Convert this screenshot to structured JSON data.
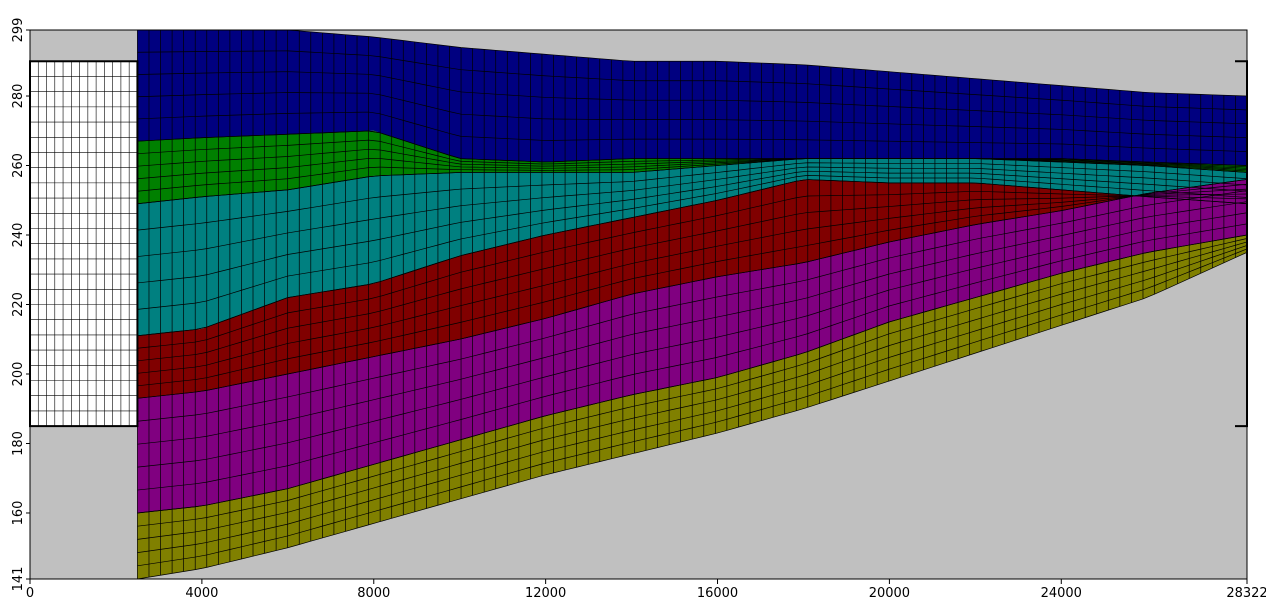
{
  "chart_data": {
    "type": "area",
    "title": "",
    "xlabel": "",
    "ylabel": "",
    "xlim": [
      0,
      28322
    ],
    "ylim": [
      141,
      299
    ],
    "x_ticks": [
      "0",
      "4000",
      "8000",
      "12000",
      "16000",
      "20000",
      "24000",
      "28322"
    ],
    "y_ticks": [
      "141",
      "160",
      "180",
      "200",
      "220",
      "240",
      "260",
      "280",
      "299"
    ],
    "grid": false,
    "legend": "none",
    "background_color": "#c0c0c0",
    "left_box": {
      "x_range": [
        0,
        2500
      ],
      "y_range": [
        185,
        290
      ]
    },
    "right_boundary": {
      "x": 28322,
      "y_range": [
        185,
        290
      ]
    },
    "x": [
      2500,
      4000,
      6000,
      8000,
      10000,
      12000,
      14000,
      16000,
      18000,
      20000,
      22000,
      24000,
      26000,
      28322
    ],
    "layers": [
      {
        "color": "#000080",
        "top": [
          299,
          299,
          299,
          297,
          294,
          292,
          290,
          290,
          289,
          287,
          285,
          283,
          281,
          280
        ]
      },
      {
        "color": "#008000",
        "top": [
          267,
          268,
          269,
          270,
          262,
          261,
          262,
          262,
          262,
          262,
          262,
          262,
          261,
          260
        ]
      },
      {
        "color": "#008080",
        "top": [
          249,
          251,
          253,
          257,
          258,
          258,
          258,
          260,
          262,
          262,
          262,
          261,
          260,
          258
        ]
      },
      {
        "color": "#800000",
        "top": [
          211,
          213,
          222,
          226,
          234,
          240,
          245,
          250,
          256,
          255,
          255,
          253,
          251,
          249
        ]
      },
      {
        "color": "#800080",
        "top": [
          193,
          195,
          200,
          205,
          210,
          216,
          223,
          228,
          232,
          238,
          243,
          247,
          252,
          256
        ]
      },
      {
        "color": "#808000",
        "top": [
          160,
          162,
          167,
          174,
          181,
          188,
          194,
          199,
          206,
          215,
          222,
          229,
          235,
          240
        ]
      }
    ],
    "bottom": [
      141,
      144,
      150,
      157,
      164,
      171,
      177,
      183,
      190,
      198,
      206,
      214,
      222,
      235
    ]
  }
}
